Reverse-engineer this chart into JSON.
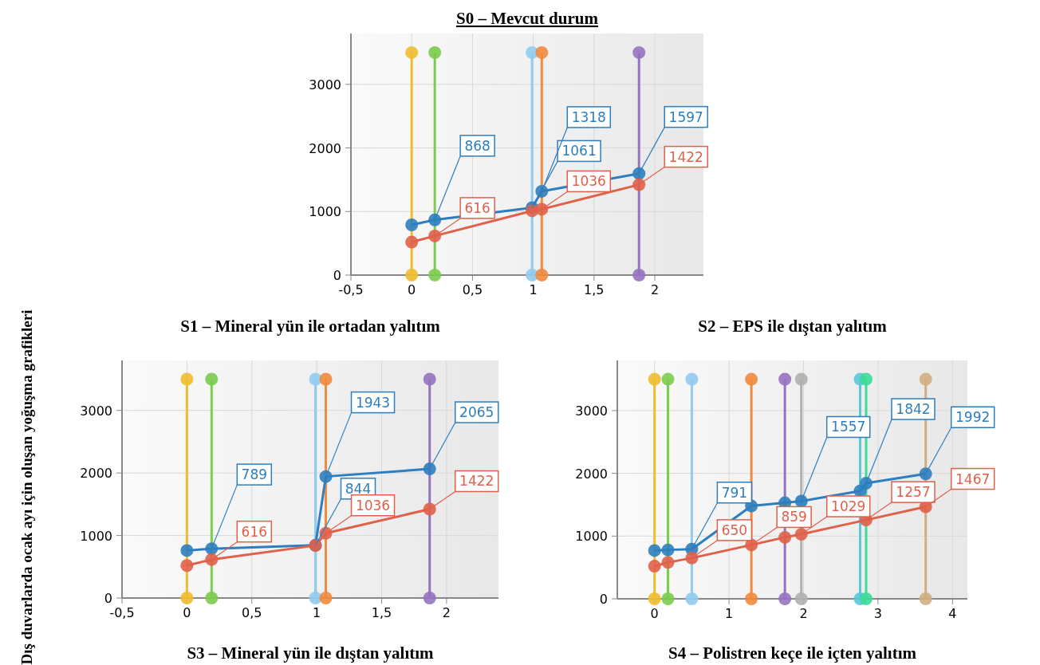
{
  "chart_data": [
    {
      "type": "line",
      "title": "S0 – Mevcut durum",
      "xlim": [
        -0.5,
        2.4
      ],
      "ylim": [
        0,
        3800
      ],
      "xticks": [
        {
          "value": -0.5,
          "label": "-0,5"
        },
        0,
        {
          "value": 0.5,
          "label": "0,5"
        },
        1,
        {
          "value": 1.5,
          "label": "1,5"
        },
        2
      ],
      "yticks": [
        0,
        1000,
        2000,
        3000
      ],
      "grid": true,
      "marker": "circle",
      "series": [
        {
          "color": "#f0bc2e",
          "x": [
            0,
            0
          ],
          "values": [
            0,
            3500
          ]
        },
        {
          "color": "#7ccc4e",
          "x": [
            0.19,
            0.19
          ],
          "values": [
            0,
            3500
          ]
        },
        {
          "color": "#90cbf0",
          "x": [
            0.99,
            0.99
          ],
          "values": [
            0,
            3500
          ]
        },
        {
          "color": "#ef8a3e",
          "x": [
            1.07,
            1.07
          ],
          "values": [
            0,
            3500
          ]
        },
        {
          "color": "#9673c0",
          "x": [
            1.87,
            1.87
          ],
          "values": [
            0,
            3500
          ]
        },
        {
          "color": "#2e7ebf",
          "x": [
            0,
            0.19,
            0.99,
            1.07,
            1.87
          ],
          "values": [
            790,
            868,
            1061,
            1318,
            1597
          ],
          "value_labels": [
            null,
            "868",
            "1061",
            "1318",
            "1597"
          ]
        },
        {
          "color": "#e0604a",
          "x": [
            0,
            0.19,
            0.99,
            1.07,
            1.87
          ],
          "values": [
            520,
            616,
            1010,
            1036,
            1422
          ],
          "value_labels": [
            null,
            "616",
            null,
            "1036",
            "1422"
          ]
        }
      ]
    },
    {
      "type": "line",
      "title": "S1 – Mineral yün ile ortadan yalıtım",
      "ylabel": "Dış duvarlarda ocak ayı için oluşan yoğuşma grafikleri",
      "annotations": [
        "S3 – Mineral yün ile dıştan yalıtım"
      ],
      "xlim": [
        -0.5,
        2.4
      ],
      "ylim": [
        0,
        3800
      ],
      "xticks": [
        {
          "value": -0.5,
          "label": "-0,5"
        },
        0,
        {
          "value": 0.5,
          "label": "0,5"
        },
        1,
        {
          "value": 1.5,
          "label": "1,5"
        },
        2
      ],
      "yticks": [
        0,
        1000,
        2000,
        3000
      ],
      "grid": true,
      "marker": "circle",
      "series": [
        {
          "color": "#f0bc2e",
          "x": [
            0,
            0
          ],
          "values": [
            0,
            3500
          ]
        },
        {
          "color": "#7ccc4e",
          "x": [
            0.19,
            0.19
          ],
          "values": [
            0,
            3500
          ]
        },
        {
          "color": "#90cbf0",
          "x": [
            0.99,
            0.99
          ],
          "values": [
            0,
            3500
          ]
        },
        {
          "color": "#ef8a3e",
          "x": [
            1.07,
            1.07
          ],
          "values": [
            0,
            3500
          ]
        },
        {
          "color": "#9673c0",
          "x": [
            1.87,
            1.87
          ],
          "values": [
            0,
            3500
          ]
        },
        {
          "color": "#2e7ebf",
          "x": [
            0,
            0.19,
            0.99,
            1.07,
            1.87
          ],
          "values": [
            760,
            789,
            844,
            1943,
            2065
          ],
          "value_labels": [
            null,
            "789",
            "844",
            "1943",
            "2065"
          ]
        },
        {
          "color": "#e0604a",
          "x": [
            0,
            0.19,
            0.99,
            1.07,
            1.87
          ],
          "values": [
            520,
            616,
            840,
            1036,
            1422
          ],
          "value_labels": [
            null,
            "616",
            null,
            "1036",
            "1422"
          ]
        }
      ]
    },
    {
      "type": "line",
      "title": "S2 – EPS ile dıştan yalıtım",
      "annotations": [
        "S4 – Polistren keçe ile içten yalıtım"
      ],
      "xlim": [
        -0.5,
        4.2
      ],
      "ylim": [
        0,
        3800
      ],
      "xticks": [
        0,
        1,
        2,
        3,
        4
      ],
      "yticks": [
        0,
        1000,
        2000,
        3000
      ],
      "grid": true,
      "marker": "circle",
      "series": [
        {
          "color": "#f0bc2e",
          "x": [
            0,
            0
          ],
          "values": [
            0,
            3500
          ]
        },
        {
          "color": "#7ccc4e",
          "x": [
            0.18,
            0.18
          ],
          "values": [
            0,
            3500
          ]
        },
        {
          "color": "#90cbf0",
          "x": [
            0.5,
            0.5
          ],
          "values": [
            0,
            3500
          ]
        },
        {
          "color": "#ef8a3e",
          "x": [
            1.3,
            1.3
          ],
          "values": [
            0,
            3500
          ]
        },
        {
          "color": "#9673c0",
          "x": [
            1.75,
            1.75
          ],
          "values": [
            0,
            3500
          ]
        },
        {
          "color": "#b0b0b0",
          "x": [
            1.97,
            1.97
          ],
          "values": [
            0,
            3500
          ]
        },
        {
          "color": "#5bc6dc",
          "x": [
            2.76,
            2.76
          ],
          "values": [
            0,
            3500
          ]
        },
        {
          "color": "#3ddc96",
          "x": [
            2.84,
            2.84
          ],
          "values": [
            0,
            3500
          ]
        },
        {
          "color": "#d1ae7f",
          "x": [
            3.64,
            3.64
          ],
          "values": [
            0,
            3500
          ]
        },
        {
          "color": "#2e7ebf",
          "x": [
            0,
            0.18,
            0.5,
            1.3,
            1.75,
            1.97,
            2.76,
            2.84,
            3.64
          ],
          "values": [
            770,
            780,
            791,
            1480,
            1530,
            1557,
            1720,
            1842,
            1992
          ],
          "value_labels": [
            null,
            null,
            "791",
            null,
            null,
            "1557",
            null,
            "1842",
            "1992"
          ]
        },
        {
          "color": "#e0604a",
          "x": [
            0,
            0.18,
            0.5,
            1.3,
            1.75,
            1.97,
            2.76,
            2.84,
            3.64
          ],
          "values": [
            520,
            580,
            650,
            859,
            980,
            1029,
            null,
            1257,
            1467
          ],
          "value_labels": [
            null,
            null,
            "650",
            "859",
            null,
            "1029",
            null,
            "1257",
            "1467"
          ]
        }
      ]
    }
  ]
}
